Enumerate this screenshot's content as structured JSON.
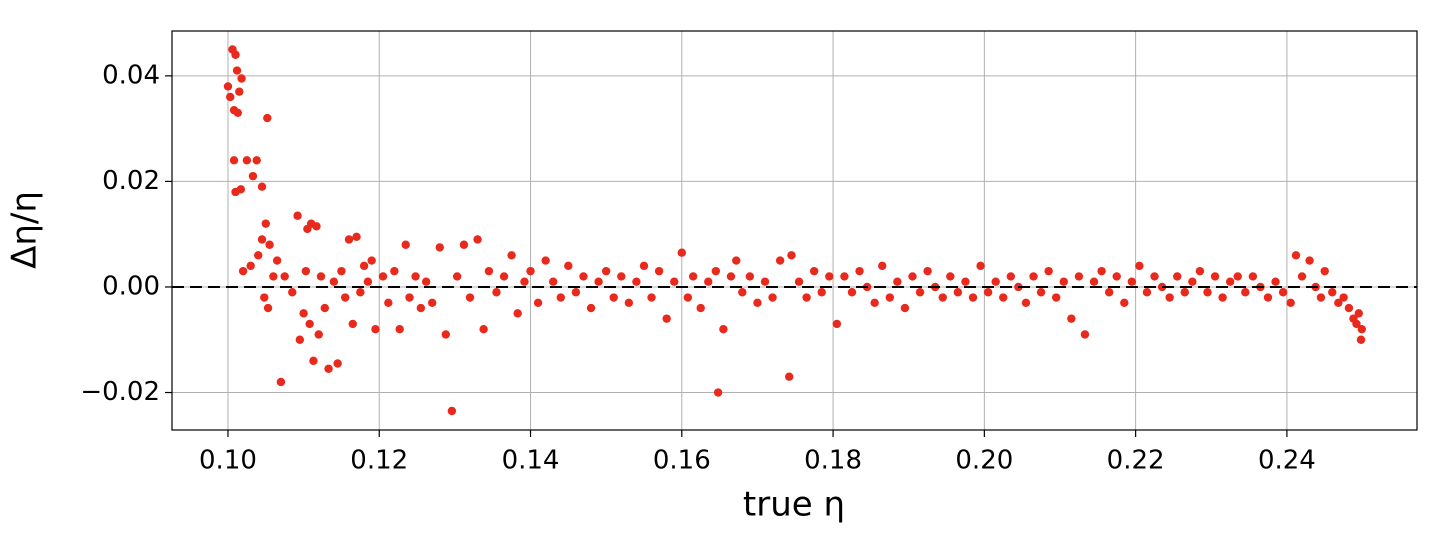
{
  "chart_data": {
    "type": "scatter",
    "xlabel": "true η",
    "ylabel": "Δη/η",
    "color": "#e8291c",
    "grid": true,
    "hline": 0,
    "xlim": [
      0.0926,
      0.2572
    ],
    "ylim": [
      -0.0271,
      0.0485
    ],
    "xticks": [
      {
        "value": 0.1,
        "label": "0.10"
      },
      {
        "value": 0.12,
        "label": "0.12"
      },
      {
        "value": 0.14,
        "label": "0.14"
      },
      {
        "value": 0.16,
        "label": "0.16"
      },
      {
        "value": 0.18,
        "label": "0.18"
      },
      {
        "value": 0.2,
        "label": "0.20"
      },
      {
        "value": 0.22,
        "label": "0.22"
      },
      {
        "value": 0.24,
        "label": "0.24"
      }
    ],
    "yticks": [
      {
        "value": -0.02,
        "label": "−0.02"
      },
      {
        "value": 0.0,
        "label": "0.00"
      },
      {
        "value": 0.02,
        "label": "0.02"
      },
      {
        "value": 0.04,
        "label": "0.04"
      }
    ],
    "x": [
      0.1,
      0.1003,
      0.1006,
      0.1008,
      0.101,
      0.1012,
      0.1013,
      0.1015,
      0.1018,
      0.1008,
      0.101,
      0.1017,
      0.1025,
      0.1033,
      0.1038,
      0.1045,
      0.1052,
      0.102,
      0.103,
      0.104,
      0.1045,
      0.105,
      0.1055,
      0.1048,
      0.1053,
      0.106,
      0.1065,
      0.107,
      0.1075,
      0.1085,
      0.1092,
      0.1095,
      0.11,
      0.1103,
      0.1105,
      0.1108,
      0.111,
      0.1113,
      0.1117,
      0.112,
      0.1123,
      0.1128,
      0.1133,
      0.114,
      0.1145,
      0.115,
      0.1155,
      0.116,
      0.1165,
      0.117,
      0.1175,
      0.118,
      0.1185,
      0.119,
      0.1195,
      0.1205,
      0.1212,
      0.122,
      0.1227,
      0.1235,
      0.124,
      0.1248,
      0.1255,
      0.1262,
      0.127,
      0.128,
      0.1288,
      0.1296,
      0.1303,
      0.1312,
      0.132,
      0.133,
      0.1338,
      0.1345,
      0.1355,
      0.1365,
      0.1375,
      0.1383,
      0.1392,
      0.14,
      0.141,
      0.142,
      0.143,
      0.144,
      0.145,
      0.146,
      0.147,
      0.148,
      0.149,
      0.15,
      0.151,
      0.152,
      0.153,
      0.154,
      0.155,
      0.156,
      0.157,
      0.158,
      0.159,
      0.16,
      0.1608,
      0.1615,
      0.1625,
      0.1635,
      0.1645,
      0.1648,
      0.1655,
      0.1665,
      0.1672,
      0.168,
      0.169,
      0.17,
      0.171,
      0.172,
      0.173,
      0.1742,
      0.1745,
      0.1755,
      0.1765,
      0.1775,
      0.1785,
      0.1795,
      0.1805,
      0.1815,
      0.1825,
      0.1835,
      0.1845,
      0.1855,
      0.1865,
      0.1875,
      0.1885,
      0.1895,
      0.1905,
      0.1915,
      0.1925,
      0.1935,
      0.1945,
      0.1955,
      0.1965,
      0.1975,
      0.1985,
      0.1995,
      0.2005,
      0.2015,
      0.2025,
      0.2035,
      0.2045,
      0.2055,
      0.2065,
      0.2075,
      0.2085,
      0.2095,
      0.2105,
      0.2115,
      0.2125,
      0.2133,
      0.2145,
      0.2155,
      0.2165,
      0.2175,
      0.2185,
      0.2195,
      0.2205,
      0.2215,
      0.2225,
      0.2235,
      0.2245,
      0.2255,
      0.2265,
      0.2275,
      0.2285,
      0.2295,
      0.2305,
      0.2315,
      0.2325,
      0.2335,
      0.2345,
      0.2355,
      0.2365,
      0.2375,
      0.2385,
      0.2395,
      0.2405,
      0.2412,
      0.242,
      0.243,
      0.2438,
      0.2445,
      0.245,
      0.246,
      0.2468,
      0.2475,
      0.2482,
      0.2488,
      0.2492,
      0.2495,
      0.2498,
      0.2499
    ],
    "values": [
      0.038,
      0.036,
      0.045,
      0.0335,
      0.044,
      0.041,
      0.033,
      0.037,
      0.0395,
      0.024,
      0.018,
      0.0185,
      0.024,
      0.021,
      0.024,
      0.019,
      0.032,
      0.003,
      0.004,
      0.006,
      0.009,
      0.012,
      0.008,
      -0.002,
      -0.004,
      0.002,
      0.005,
      -0.018,
      0.002,
      -0.001,
      0.0135,
      -0.01,
      -0.005,
      0.003,
      0.011,
      -0.007,
      0.012,
      -0.014,
      0.0115,
      -0.009,
      0.002,
      -0.004,
      -0.0155,
      0.001,
      -0.0145,
      0.003,
      -0.002,
      0.009,
      -0.007,
      0.0095,
      -0.001,
      0.004,
      0.001,
      0.005,
      -0.008,
      0.002,
      -0.003,
      0.003,
      -0.008,
      0.008,
      -0.002,
      0.002,
      -0.004,
      0.001,
      -0.003,
      0.0075,
      -0.009,
      -0.0235,
      0.002,
      0.008,
      -0.002,
      0.009,
      -0.008,
      0.003,
      -0.001,
      0.002,
      0.006,
      -0.005,
      0.001,
      0.003,
      -0.003,
      0.005,
      0.001,
      -0.002,
      0.004,
      -0.001,
      0.002,
      -0.004,
      0.001,
      0.003,
      -0.002,
      0.002,
      -0.003,
      0.001,
      0.004,
      -0.002,
      0.003,
      -0.006,
      0.001,
      0.0065,
      -0.002,
      0.002,
      -0.004,
      0.001,
      0.003,
      -0.02,
      -0.008,
      0.002,
      0.005,
      -0.001,
      0.002,
      -0.003,
      0.001,
      -0.002,
      0.005,
      -0.017,
      0.006,
      0.001,
      -0.002,
      0.003,
      -0.001,
      0.002,
      -0.007,
      0.002,
      -0.001,
      0.003,
      0.0,
      -0.003,
      0.004,
      -0.002,
      0.001,
      -0.004,
      0.002,
      -0.001,
      0.003,
      0.0,
      -0.002,
      0.002,
      -0.001,
      0.001,
      -0.002,
      0.004,
      -0.001,
      0.001,
      -0.002,
      0.002,
      0.0,
      -0.003,
      0.002,
      -0.001,
      0.003,
      -0.002,
      0.001,
      -0.006,
      0.002,
      -0.009,
      0.001,
      0.003,
      -0.001,
      0.002,
      -0.003,
      0.001,
      0.004,
      -0.001,
      0.002,
      0.0,
      -0.002,
      0.002,
      -0.001,
      0.001,
      0.003,
      -0.001,
      0.002,
      -0.002,
      0.001,
      0.002,
      -0.001,
      0.002,
      0.0,
      -0.002,
      0.001,
      -0.001,
      -0.003,
      0.006,
      0.002,
      0.005,
      0.0,
      -0.002,
      0.003,
      -0.001,
      -0.003,
      -0.002,
      -0.004,
      -0.006,
      -0.007,
      -0.005,
      -0.01,
      -0.008
    ]
  }
}
